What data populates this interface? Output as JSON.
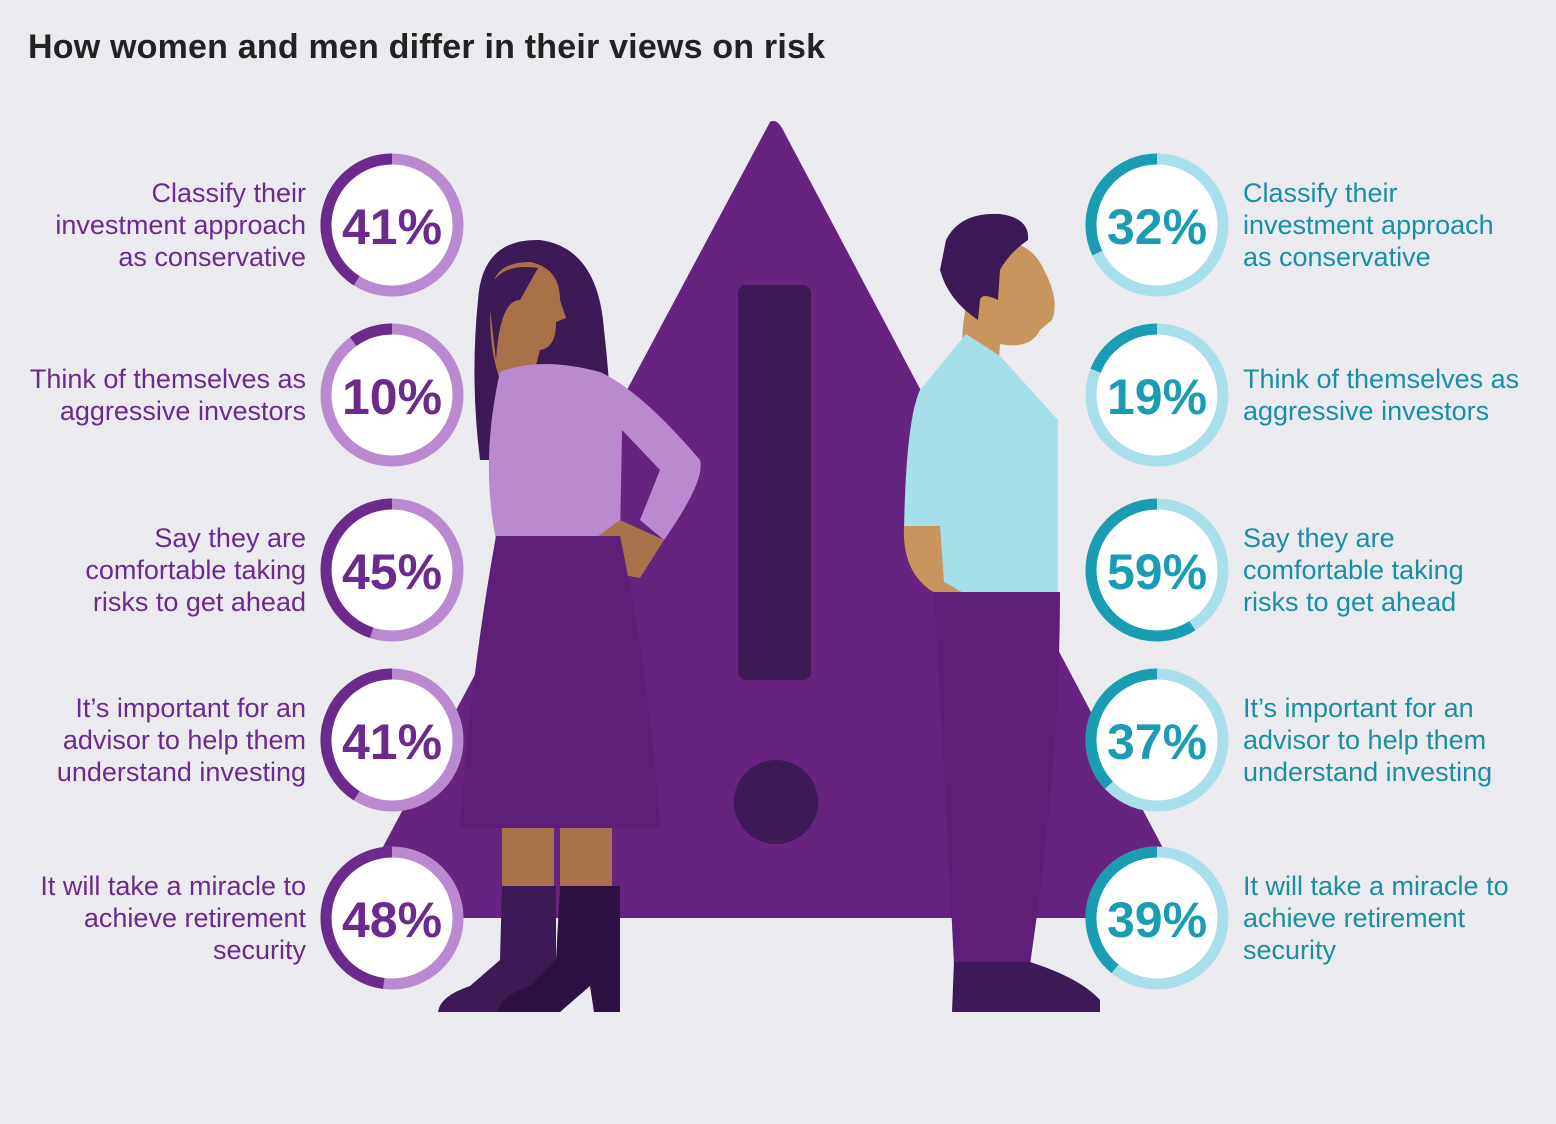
{
  "chart_data": {
    "type": "donut",
    "title": "How women and men differ in their views on risk",
    "categories": [
      "Classify their investment approach as conservative",
      "Think of themselves as aggressive investors",
      "Say they are comfortable taking risks to get ahead",
      "It’s important for an advisor to help them understand investing",
      "It will take a miracle to achieve retirement security"
    ],
    "series": [
      {
        "color": "#6b2b8c",
        "track_color": "#b98ad0",
        "values": [
          41,
          10,
          45,
          41,
          48
        ],
        "value_labels": [
          "41%",
          "10%",
          "45%",
          "41%",
          "48%"
        ]
      },
      {
        "color": "#1a9cb3",
        "track_color": "#a8dfea",
        "values": [
          32,
          19,
          59,
          37,
          39
        ],
        "value_labels": [
          "32%",
          "19%",
          "59%",
          "37%",
          "39%"
        ]
      }
    ]
  }
}
